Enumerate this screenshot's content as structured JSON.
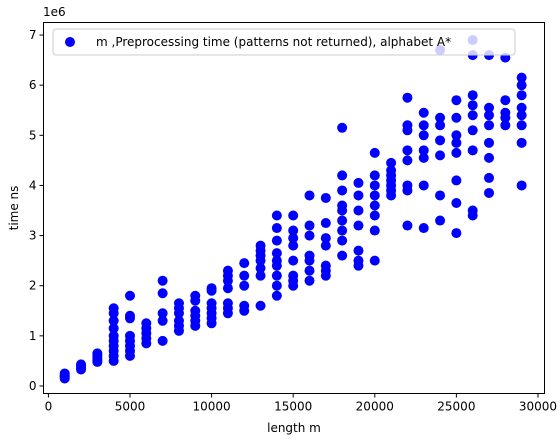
{
  "chart_data": {
    "type": "scatter",
    "xlabel": "length m",
    "ylabel": "time ns",
    "y_multiplier_label": "1e6",
    "xlim": [
      -300,
      30400
    ],
    "ylim": [
      -150000,
      7250000
    ],
    "xticks": [
      0,
      5000,
      10000,
      15000,
      20000,
      25000,
      30000
    ],
    "xtick_labels": [
      "0",
      "5000",
      "10000",
      "15000",
      "20000",
      "25000",
      "30000"
    ],
    "yticks": [
      0,
      1000000,
      2000000,
      3000000,
      4000000,
      5000000,
      6000000,
      7000000
    ],
    "ytick_labels": [
      "0",
      "1",
      "2",
      "3",
      "4",
      "5",
      "6",
      "7"
    ],
    "grid": false,
    "legend_position": "top-right",
    "colors": {
      "marker": "#0000ff"
    },
    "series": [
      {
        "name": "m ,Preprocessing time (patterns not returned), alphabet A*",
        "points": [
          [
            1000,
            150000
          ],
          [
            1000,
            180000
          ],
          [
            1000,
            200000
          ],
          [
            1000,
            220000
          ],
          [
            1000,
            250000
          ],
          [
            2000,
            330000
          ],
          [
            2000,
            360000
          ],
          [
            2000,
            400000
          ],
          [
            2000,
            430000
          ],
          [
            3000,
            480000
          ],
          [
            3000,
            510000
          ],
          [
            3000,
            550000
          ],
          [
            3000,
            600000
          ],
          [
            3000,
            650000
          ],
          [
            4000,
            500000
          ],
          [
            4000,
            600000
          ],
          [
            4000,
            700000
          ],
          [
            4000,
            800000
          ],
          [
            4000,
            900000
          ],
          [
            4000,
            1000000
          ],
          [
            4000,
            1150000
          ],
          [
            4000,
            1300000
          ],
          [
            4000,
            1450000
          ],
          [
            4000,
            1550000
          ],
          [
            5000,
            600000
          ],
          [
            5000,
            700000
          ],
          [
            5000,
            800000
          ],
          [
            5000,
            900000
          ],
          [
            5000,
            1000000
          ],
          [
            5000,
            1350000
          ],
          [
            5000,
            1400000
          ],
          [
            5000,
            1800000
          ],
          [
            6000,
            850000
          ],
          [
            6000,
            950000
          ],
          [
            6000,
            1050000
          ],
          [
            6000,
            1150000
          ],
          [
            6000,
            1250000
          ],
          [
            7000,
            900000
          ],
          [
            7000,
            1300000
          ],
          [
            7000,
            1450000
          ],
          [
            7000,
            1850000
          ],
          [
            7000,
            2100000
          ],
          [
            8000,
            1100000
          ],
          [
            8000,
            1200000
          ],
          [
            8000,
            1300000
          ],
          [
            8000,
            1450000
          ],
          [
            8000,
            1550000
          ],
          [
            8000,
            1650000
          ],
          [
            9000,
            1200000
          ],
          [
            9000,
            1300000
          ],
          [
            9000,
            1400000
          ],
          [
            9000,
            1500000
          ],
          [
            9000,
            1700000
          ],
          [
            9000,
            1800000
          ],
          [
            10000,
            1250000
          ],
          [
            10000,
            1350000
          ],
          [
            10000,
            1450000
          ],
          [
            10000,
            1550000
          ],
          [
            10000,
            1650000
          ],
          [
            10000,
            1900000
          ],
          [
            10000,
            1950000
          ],
          [
            11000,
            1450000
          ],
          [
            11000,
            1550000
          ],
          [
            11000,
            1650000
          ],
          [
            11000,
            1950000
          ],
          [
            11000,
            2100000
          ],
          [
            11000,
            2200000
          ],
          [
            11000,
            2300000
          ],
          [
            12000,
            1500000
          ],
          [
            12000,
            1600000
          ],
          [
            12000,
            2000000
          ],
          [
            12000,
            2200000
          ],
          [
            12000,
            2450000
          ],
          [
            13000,
            1600000
          ],
          [
            13000,
            2200000
          ],
          [
            13000,
            2350000
          ],
          [
            13000,
            2500000
          ],
          [
            13000,
            2600000
          ],
          [
            13000,
            2700000
          ],
          [
            13000,
            2800000
          ],
          [
            14000,
            1800000
          ],
          [
            14000,
            2000000
          ],
          [
            14000,
            2200000
          ],
          [
            14000,
            2400000
          ],
          [
            14000,
            2500000
          ],
          [
            14000,
            2650000
          ],
          [
            14000,
            2900000
          ],
          [
            14000,
            3150000
          ],
          [
            14000,
            3400000
          ],
          [
            15000,
            2000000
          ],
          [
            15000,
            2100000
          ],
          [
            15000,
            2200000
          ],
          [
            15000,
            2500000
          ],
          [
            15000,
            2800000
          ],
          [
            15000,
            2950000
          ],
          [
            15000,
            3100000
          ],
          [
            15000,
            3400000
          ],
          [
            16000,
            2100000
          ],
          [
            16000,
            2300000
          ],
          [
            16000,
            2500000
          ],
          [
            16000,
            2600000
          ],
          [
            16000,
            3000000
          ],
          [
            16000,
            3200000
          ],
          [
            16000,
            3800000
          ],
          [
            17000,
            2200000
          ],
          [
            17000,
            2300000
          ],
          [
            17000,
            2400000
          ],
          [
            17000,
            2800000
          ],
          [
            17000,
            2950000
          ],
          [
            17000,
            3250000
          ],
          [
            17000,
            3750000
          ],
          [
            18000,
            2600000
          ],
          [
            18000,
            2900000
          ],
          [
            18000,
            3100000
          ],
          [
            18000,
            3300000
          ],
          [
            18000,
            3500000
          ],
          [
            18000,
            3600000
          ],
          [
            18000,
            3900000
          ],
          [
            18000,
            4200000
          ],
          [
            18000,
            5150000
          ],
          [
            19000,
            2400000
          ],
          [
            19000,
            2500000
          ],
          [
            19000,
            2700000
          ],
          [
            19000,
            3200000
          ],
          [
            19000,
            3500000
          ],
          [
            19000,
            3800000
          ],
          [
            19000,
            4050000
          ],
          [
            20000,
            2500000
          ],
          [
            20000,
            3100000
          ],
          [
            20000,
            3400000
          ],
          [
            20000,
            3600000
          ],
          [
            20000,
            3800000
          ],
          [
            20000,
            4000000
          ],
          [
            20000,
            4200000
          ],
          [
            20000,
            4650000
          ],
          [
            21000,
            3800000
          ],
          [
            21000,
            3900000
          ],
          [
            21000,
            4000000
          ],
          [
            21000,
            4100000
          ],
          [
            21000,
            4200000
          ],
          [
            21000,
            4300000
          ],
          [
            21000,
            4450000
          ],
          [
            22000,
            3200000
          ],
          [
            22000,
            3900000
          ],
          [
            22000,
            4000000
          ],
          [
            22000,
            4500000
          ],
          [
            22000,
            4700000
          ],
          [
            22000,
            5100000
          ],
          [
            22000,
            5200000
          ],
          [
            22000,
            5750000
          ],
          [
            23000,
            3150000
          ],
          [
            23000,
            4000000
          ],
          [
            23000,
            4550000
          ],
          [
            23000,
            4700000
          ],
          [
            23000,
            5000000
          ],
          [
            23000,
            5200000
          ],
          [
            23000,
            5450000
          ],
          [
            24000,
            3300000
          ],
          [
            24000,
            3800000
          ],
          [
            24000,
            4600000
          ],
          [
            24000,
            4900000
          ],
          [
            24000,
            5200000
          ],
          [
            24000,
            5350000
          ],
          [
            24000,
            6700000
          ],
          [
            25000,
            3050000
          ],
          [
            25000,
            3650000
          ],
          [
            25000,
            4100000
          ],
          [
            25000,
            4650000
          ],
          [
            25000,
            4850000
          ],
          [
            25000,
            5000000
          ],
          [
            25000,
            5350000
          ],
          [
            25000,
            5700000
          ],
          [
            26000,
            3400000
          ],
          [
            26000,
            3500000
          ],
          [
            26000,
            4700000
          ],
          [
            26000,
            5100000
          ],
          [
            26000,
            5400000
          ],
          [
            26000,
            5600000
          ],
          [
            26000,
            5800000
          ],
          [
            26000,
            6600000
          ],
          [
            26000,
            6900000
          ],
          [
            27000,
            3850000
          ],
          [
            27000,
            4150000
          ],
          [
            27000,
            4550000
          ],
          [
            27000,
            4850000
          ],
          [
            27000,
            5200000
          ],
          [
            27000,
            5400000
          ],
          [
            27000,
            5550000
          ],
          [
            27000,
            6600000
          ],
          [
            28000,
            5200000
          ],
          [
            28000,
            5350000
          ],
          [
            28000,
            5450000
          ],
          [
            28000,
            5700000
          ],
          [
            28000,
            6550000
          ],
          [
            29000,
            4000000
          ],
          [
            29000,
            4850000
          ],
          [
            29000,
            5200000
          ],
          [
            29000,
            5400000
          ],
          [
            29000,
            5550000
          ],
          [
            29000,
            5800000
          ],
          [
            29000,
            6000000
          ],
          [
            29000,
            6150000
          ]
        ]
      }
    ]
  }
}
